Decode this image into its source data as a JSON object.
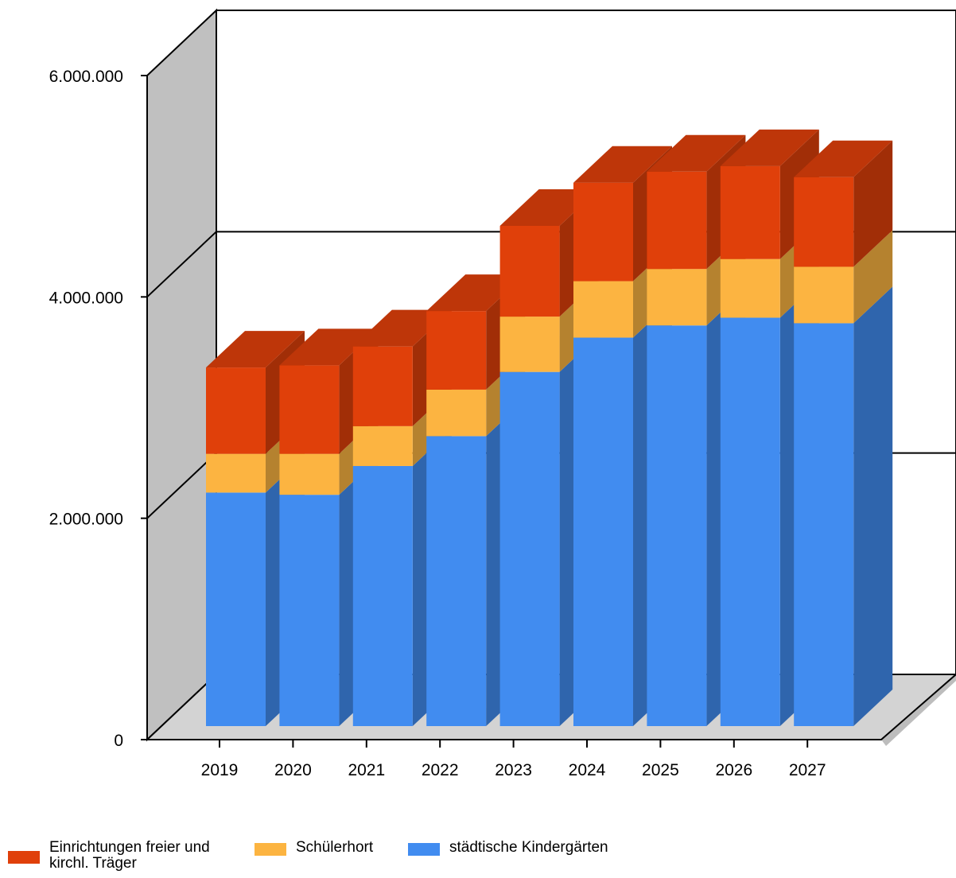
{
  "chart_data": {
    "type": "bar",
    "stacked": true,
    "three_d": true,
    "title": "",
    "xlabel": "",
    "ylabel": "",
    "categories": [
      "2019",
      "2020",
      "2021",
      "2022",
      "2023",
      "2024",
      "2025",
      "2026",
      "2027"
    ],
    "ylim": [
      0,
      6000000
    ],
    "y_ticks": [
      {
        "value": 0,
        "label": "0"
      },
      {
        "value": 2000000,
        "label": "2.000.000"
      },
      {
        "value": 4000000,
        "label": "4.000.000"
      },
      {
        "value": 6000000,
        "label": "6.000.000"
      }
    ],
    "grid": true,
    "legend_position": "bottom-left",
    "series": [
      {
        "name": "städtische Kindergärten",
        "color": "#418CF0",
        "values": [
          2110000,
          2090000,
          2350000,
          2620000,
          3200000,
          3510000,
          3620000,
          3690000,
          3640000
        ]
      },
      {
        "name": "Schülerhort",
        "color": "#FCB441",
        "values": [
          350000,
          370000,
          360000,
          420000,
          500000,
          510000,
          510000,
          530000,
          510000
        ]
      },
      {
        "name": "Einrichtungen freier und kirchl. Träger",
        "color": "#E0400A",
        "values": [
          780000,
          800000,
          720000,
          710000,
          820000,
          890000,
          880000,
          840000,
          810000
        ]
      }
    ]
  }
}
